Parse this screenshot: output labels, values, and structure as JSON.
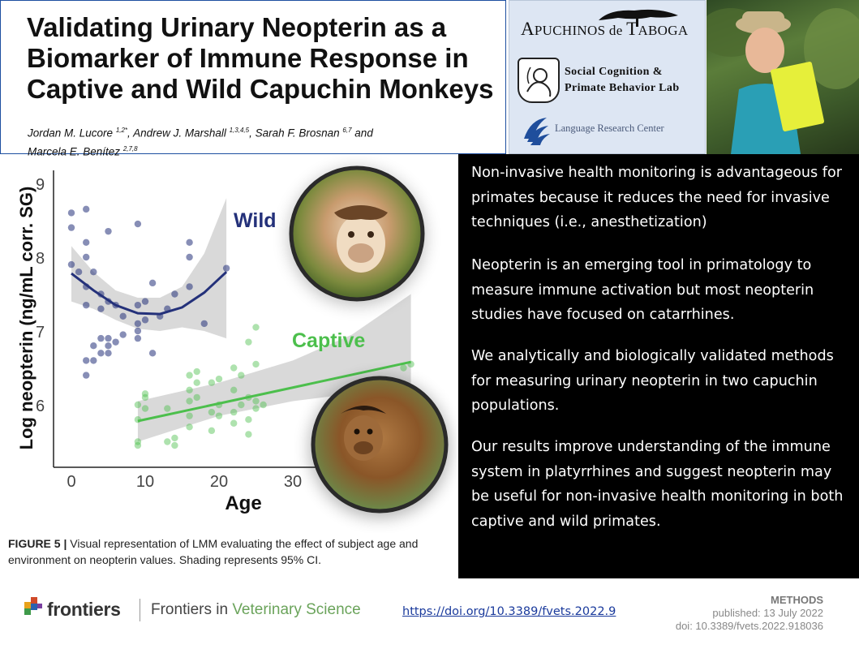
{
  "header": {
    "title": "Validating Urinary Neopterin as a Biomarker of Immune Response in Captive and Wild Capuchin Monkeys",
    "authors": [
      {
        "name": "Jordan M. Lucore",
        "aff": "1,2*",
        "sep": ", "
      },
      {
        "name": "Andrew J. Marshall",
        "aff": "1,3,4,5",
        "sep": ", "
      },
      {
        "name": "Sarah F. Brosnan",
        "aff": "6,7",
        "sep": " and "
      },
      {
        "name": "Marcela E. Benítez",
        "aff": "2,7,8",
        "sep": ""
      }
    ]
  },
  "logos": {
    "apuchinos": {
      "lead": "A",
      "mid": "PUCHINOS de ",
      "lead2": "T",
      "end": "ABOGA"
    },
    "lab_line1": "Social Cognition &",
    "lab_line2": "Primate Behavior Lab",
    "lrc": "Language Research Center"
  },
  "chart_data": {
    "type": "scatter",
    "xlabel": "Age",
    "ylabel": "Log neopterin (ng/mL corr. SG)",
    "xticks": [
      "0",
      "10",
      "20",
      "30"
    ],
    "yticks": [
      "6",
      "7",
      "8",
      "9"
    ],
    "xlim": [
      -2,
      46
    ],
    "ylim": [
      5.4,
      9.2
    ],
    "series": [
      {
        "name": "Wild",
        "color": "#24317a",
        "fit": [
          [
            0,
            7.78
          ],
          [
            3,
            7.55
          ],
          [
            6,
            7.35
          ],
          [
            9,
            7.24
          ],
          [
            12,
            7.23
          ],
          [
            15,
            7.32
          ],
          [
            18,
            7.52
          ],
          [
            21,
            7.8
          ]
        ],
        "ci_upper": [
          [
            0,
            8.15
          ],
          [
            3,
            7.8
          ],
          [
            6,
            7.55
          ],
          [
            9,
            7.45
          ],
          [
            12,
            7.45
          ],
          [
            15,
            7.6
          ],
          [
            18,
            8.05
          ],
          [
            21,
            8.8
          ]
        ],
        "ci_lower": [
          [
            0,
            7.4
          ],
          [
            3,
            7.3
          ],
          [
            6,
            7.15
          ],
          [
            9,
            7.03
          ],
          [
            12,
            7.0
          ],
          [
            15,
            7.05
          ],
          [
            18,
            7.0
          ],
          [
            21,
            6.9
          ]
        ],
        "points": [
          [
            0,
            8.6
          ],
          [
            0,
            8.4
          ],
          [
            0,
            7.9
          ],
          [
            1,
            7.8
          ],
          [
            2,
            8.65
          ],
          [
            2,
            8.2
          ],
          [
            2,
            8.0
          ],
          [
            2,
            7.6
          ],
          [
            2,
            7.35
          ],
          [
            2,
            6.6
          ],
          [
            2,
            6.4
          ],
          [
            3,
            7.8
          ],
          [
            3,
            6.6
          ],
          [
            3,
            6.8
          ],
          [
            4,
            7.5
          ],
          [
            4,
            7.3
          ],
          [
            4,
            6.9
          ],
          [
            4,
            6.7
          ],
          [
            5,
            8.35
          ],
          [
            5,
            7.4
          ],
          [
            5,
            6.8
          ],
          [
            5,
            6.7
          ],
          [
            5,
            6.9
          ],
          [
            6,
            7.35
          ],
          [
            6,
            6.85
          ],
          [
            7,
            6.95
          ],
          [
            7,
            7.2
          ],
          [
            9,
            7.35
          ],
          [
            9,
            7.1
          ],
          [
            9,
            7.0
          ],
          [
            9,
            6.9
          ],
          [
            9,
            8.45
          ],
          [
            10,
            7.15
          ],
          [
            10,
            7.4
          ],
          [
            11,
            6.7
          ],
          [
            11,
            7.65
          ],
          [
            12,
            7.2
          ],
          [
            13,
            7.3
          ],
          [
            14,
            7.5
          ],
          [
            16,
            7.6
          ],
          [
            16,
            8.0
          ],
          [
            16,
            8.2
          ],
          [
            18,
            7.1
          ],
          [
            21,
            7.85
          ]
        ]
      },
      {
        "name": "Captive",
        "color": "#4cbf4c",
        "fit": [
          [
            9,
            5.78
          ],
          [
            46,
            6.58
          ]
        ],
        "ci_upper": [
          [
            9,
            6.05
          ],
          [
            20,
            6.3
          ],
          [
            30,
            6.6
          ],
          [
            38,
            6.95
          ],
          [
            46,
            7.5
          ]
        ],
        "ci_lower": [
          [
            9,
            5.5
          ],
          [
            20,
            5.85
          ],
          [
            30,
            6.05
          ],
          [
            38,
            6.15
          ],
          [
            46,
            6.2
          ]
        ],
        "points": [
          [
            9,
            6.0
          ],
          [
            9,
            5.8
          ],
          [
            9,
            5.5
          ],
          [
            9,
            5.45
          ],
          [
            10,
            6.1
          ],
          [
            10,
            5.95
          ],
          [
            10,
            6.15
          ],
          [
            13,
            5.95
          ],
          [
            13,
            5.5
          ],
          [
            14,
            5.45
          ],
          [
            14,
            5.55
          ],
          [
            16,
            6.2
          ],
          [
            16,
            6.05
          ],
          [
            16,
            5.85
          ],
          [
            16,
            5.7
          ],
          [
            16,
            6.4
          ],
          [
            17,
            6.3
          ],
          [
            17,
            6.1
          ],
          [
            17,
            6.45
          ],
          [
            19,
            6.3
          ],
          [
            19,
            5.9
          ],
          [
            19,
            5.65
          ],
          [
            20,
            6.35
          ],
          [
            20,
            6.0
          ],
          [
            20,
            5.85
          ],
          [
            22,
            6.5
          ],
          [
            22,
            6.2
          ],
          [
            22,
            5.9
          ],
          [
            22,
            5.75
          ],
          [
            23,
            6.4
          ],
          [
            23,
            6.0
          ],
          [
            24,
            5.6
          ],
          [
            24,
            6.1
          ],
          [
            24,
            5.8
          ],
          [
            24,
            6.85
          ],
          [
            25,
            6.05
          ],
          [
            25,
            6.55
          ],
          [
            25,
            5.95
          ],
          [
            25,
            7.05
          ],
          [
            26,
            6.0
          ],
          [
            45,
            6.5
          ],
          [
            46,
            6.55
          ]
        ]
      }
    ],
    "caption_label": "FIGURE 5 |",
    "caption_text": "Visual representation of LMM evaluating the effect of subject age and environment on neopterin values. Shading represents 95% CI."
  },
  "text_panel": [
    "Non-invasive health monitoring is advantageous for primates because it reduces the need for invasive techniques (i.e., anesthetization)",
    "Neopterin is an emerging tool in primatology to measure immune activation but most neopterin studies have focused on catarrhines.",
    "We analytically and biologically validated methods for measuring urinary neopterin in two capuchin populations.",
    "Our results improve understanding of the immune system in platyrrhines and suggest neopterin may be useful for non-invasive health monitoring in both captive and wild primates."
  ],
  "footer": {
    "brand": "frontiers",
    "journal_prefix": "Frontiers in ",
    "journal_suffix": "Veterinary Science",
    "doi_link": "https://doi.org/10.3389/fvets.2022.9",
    "methods_label": "METHODS",
    "published": "published: 13 July 2022",
    "doi": "doi: 10.3389/fvets.2022.918036"
  },
  "colors": {
    "wild": "#24317a",
    "captive": "#4cbf4c",
    "title_border": "#1d4fa0",
    "panel_bg": "#000000",
    "link": "#1a3a9c"
  }
}
